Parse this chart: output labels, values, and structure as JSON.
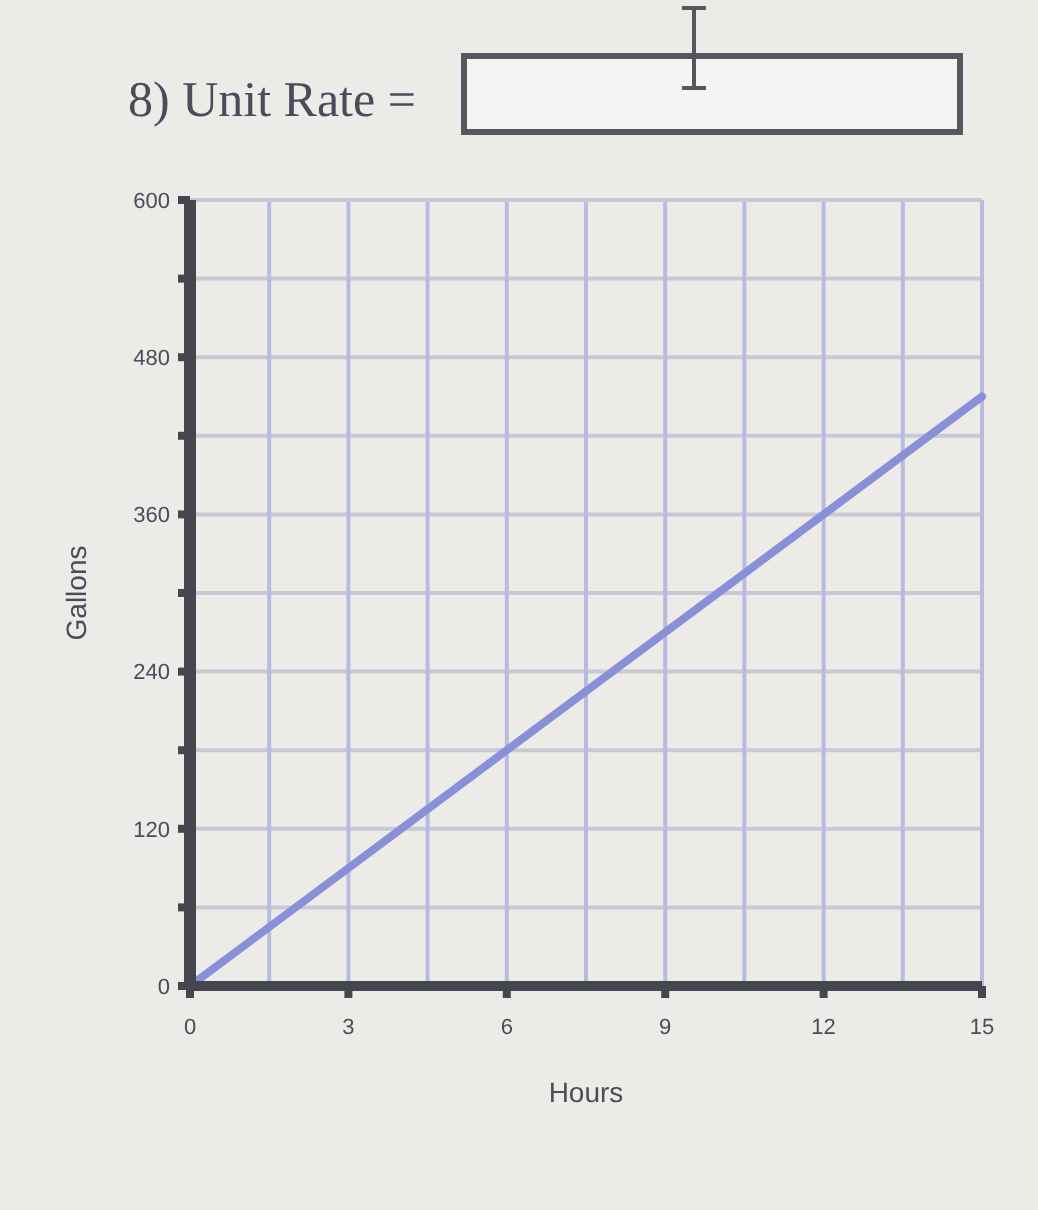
{
  "chart_data": {
    "type": "line",
    "title": "8) Unit Rate =",
    "xlabel": "Hours",
    "ylabel": "Gallons",
    "series": [
      {
        "color": "#8a90d8",
        "x": [
          0,
          15
        ],
        "values": [
          0,
          450
        ]
      }
    ],
    "xlim": [
      0,
      15
    ],
    "ylim": [
      0,
      600
    ],
    "xticks": [
      0,
      {
        "value": 1.5,
        "label": null
      },
      3,
      {
        "value": 4.5,
        "label": null
      },
      6,
      {
        "value": 7.5,
        "label": null
      },
      9,
      {
        "value": 10.5,
        "label": null
      },
      12,
      {
        "value": 13.5,
        "label": null
      },
      15
    ],
    "yticks": [
      0,
      {
        "value": 60,
        "label": null
      },
      120,
      {
        "value": 180,
        "label": null
      },
      240,
      {
        "value": 300,
        "label": null
      },
      360,
      {
        "value": 420,
        "label": null
      },
      480,
      {
        "value": 540,
        "label": null
      },
      600
    ],
    "grid": true,
    "marker": "none",
    "line_style": "solid"
  }
}
